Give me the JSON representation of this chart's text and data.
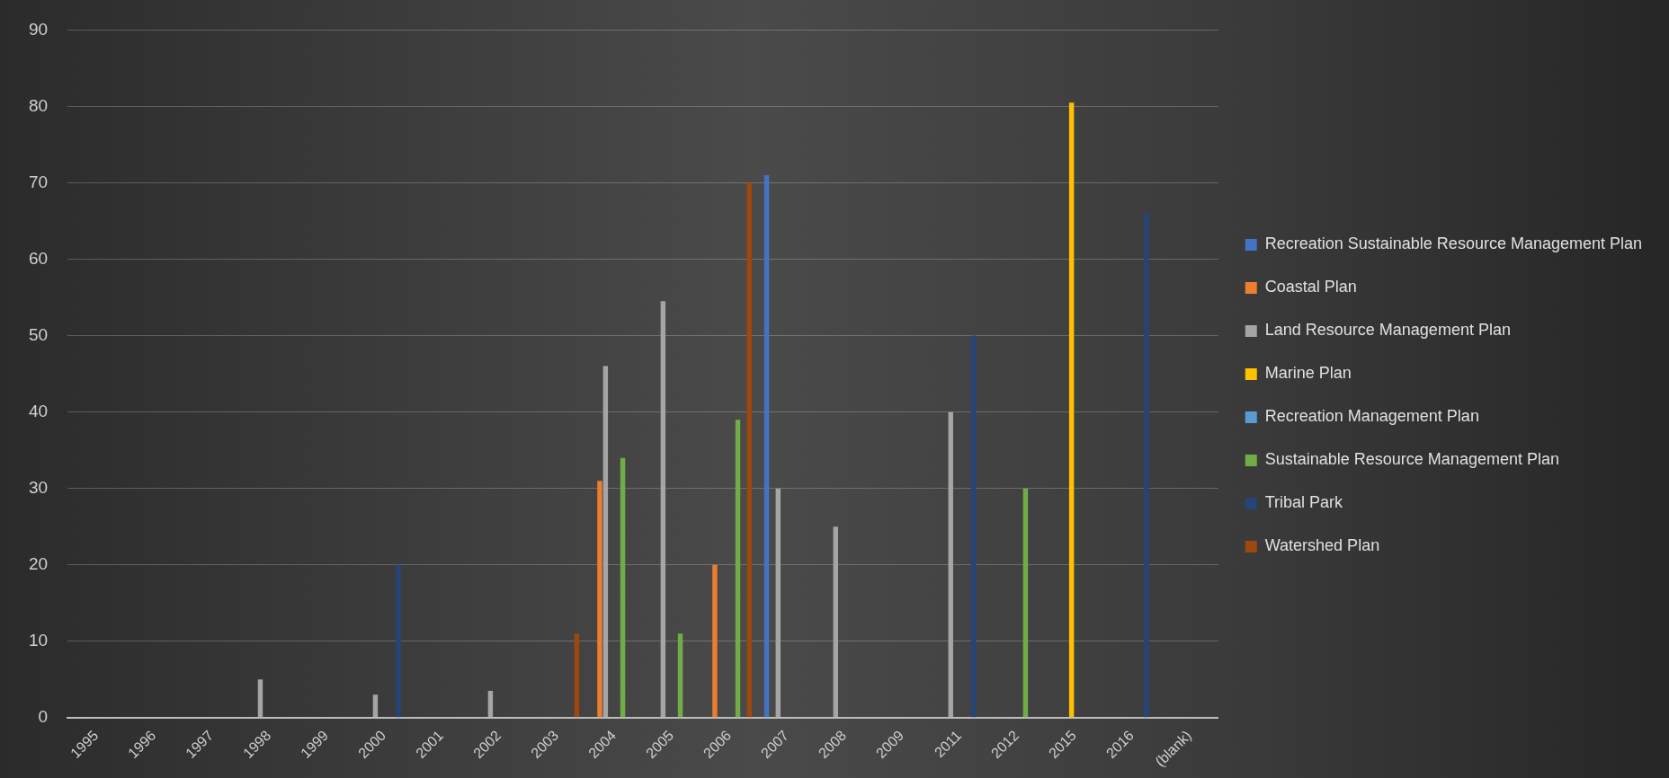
{
  "chart_data": {
    "type": "bar",
    "categories": [
      "1995",
      "1996",
      "1997",
      "1998",
      "1999",
      "2000",
      "2001",
      "2002",
      "2003",
      "2004",
      "2005",
      "2006",
      "2007",
      "2008",
      "2009",
      "2011",
      "2012",
      "2015",
      "2016",
      "(blank)"
    ],
    "series": [
      {
        "name": "Recreation Sustainable Resource Management Plan",
        "color": "#4472c4",
        "values": [
          null,
          null,
          null,
          null,
          null,
          null,
          null,
          null,
          null,
          null,
          null,
          null,
          71,
          null,
          null,
          null,
          null,
          null,
          null,
          null
        ]
      },
      {
        "name": "Coastal Plan",
        "color": "#ed7d31",
        "values": [
          null,
          null,
          null,
          null,
          null,
          null,
          null,
          null,
          null,
          31,
          null,
          20,
          null,
          null,
          null,
          null,
          null,
          null,
          null,
          null
        ]
      },
      {
        "name": "Land Resource Management Plan",
        "color": "#a5a5a5",
        "values": [
          null,
          null,
          null,
          5,
          null,
          3,
          null,
          3.5,
          null,
          46,
          54.5,
          null,
          30,
          25,
          null,
          40,
          null,
          null,
          null,
          null
        ]
      },
      {
        "name": "Marine Plan",
        "color": "#ffc000",
        "values": [
          null,
          null,
          null,
          null,
          null,
          null,
          null,
          null,
          null,
          null,
          null,
          null,
          null,
          null,
          null,
          null,
          null,
          80.5,
          null,
          null
        ]
      },
      {
        "name": "Recreation Management Plan",
        "color": "#5b9bd5",
        "values": [
          null,
          null,
          null,
          null,
          null,
          null,
          null,
          null,
          null,
          null,
          null,
          null,
          null,
          null,
          null,
          null,
          null,
          null,
          null,
          null
        ]
      },
      {
        "name": "Sustainable Resource Management Plan",
        "color": "#70ad47",
        "values": [
          null,
          null,
          null,
          null,
          null,
          null,
          null,
          null,
          null,
          34,
          11,
          39,
          null,
          null,
          null,
          null,
          30,
          null,
          null,
          null
        ]
      },
      {
        "name": "Tribal Park",
        "color": "#264478",
        "values": [
          null,
          null,
          null,
          null,
          null,
          20,
          null,
          null,
          null,
          null,
          null,
          null,
          null,
          null,
          null,
          50,
          null,
          null,
          66,
          null
        ]
      },
      {
        "name": "Watershed Plan",
        "color": "#9e480e",
        "values": [
          null,
          null,
          null,
          null,
          null,
          null,
          null,
          null,
          11,
          null,
          null,
          70,
          null,
          null,
          null,
          null,
          null,
          null,
          null,
          null
        ]
      }
    ],
    "ylim": [
      0,
      90
    ],
    "yticks": [
      0,
      10,
      20,
      30,
      40,
      50,
      60,
      70,
      80,
      90
    ],
    "grid": "y",
    "legend": "right"
  }
}
